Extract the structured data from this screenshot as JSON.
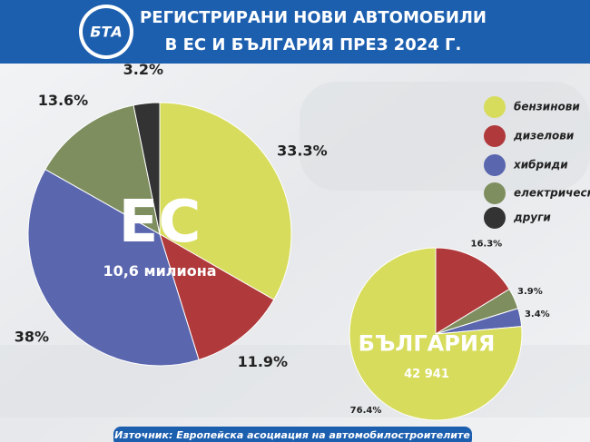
{
  "header": {
    "logo": "БТА",
    "title_line1": "РЕГИСТРИРАНИ НОВИ АВТОМОБИЛИ",
    "title_line2": "В ЕС И БЪЛГАРИЯ ПРЕЗ 2024 Г."
  },
  "legend": {
    "items": [
      "бензинови",
      "дизелови",
      "хибриди",
      "електрически",
      "други"
    ],
    "colors": [
      "#d7dc5c",
      "#b0393b",
      "#5a66ae",
      "#7e8e5f",
      "#333333"
    ]
  },
  "chart_data": [
    {
      "type": "pie",
      "title": "ЕС",
      "subtitle": "10,6 милиона",
      "values": [
        33.3,
        11.9,
        38,
        13.6,
        3.2
      ],
      "value_labels": [
        "33.3%",
        "11.9%",
        "38%",
        "13.6%",
        "3.2%"
      ]
    },
    {
      "type": "pie",
      "title": "БЪЛГАРИЯ",
      "subtitle": "42 941",
      "values": [
        76.4,
        16.3,
        3.4,
        3.9
      ],
      "value_labels": [
        "76.4%",
        "16.3%",
        "3.4%",
        "3.9%"
      ]
    }
  ],
  "source": "Източник: Европейска асоциация на автомобилостроителите"
}
